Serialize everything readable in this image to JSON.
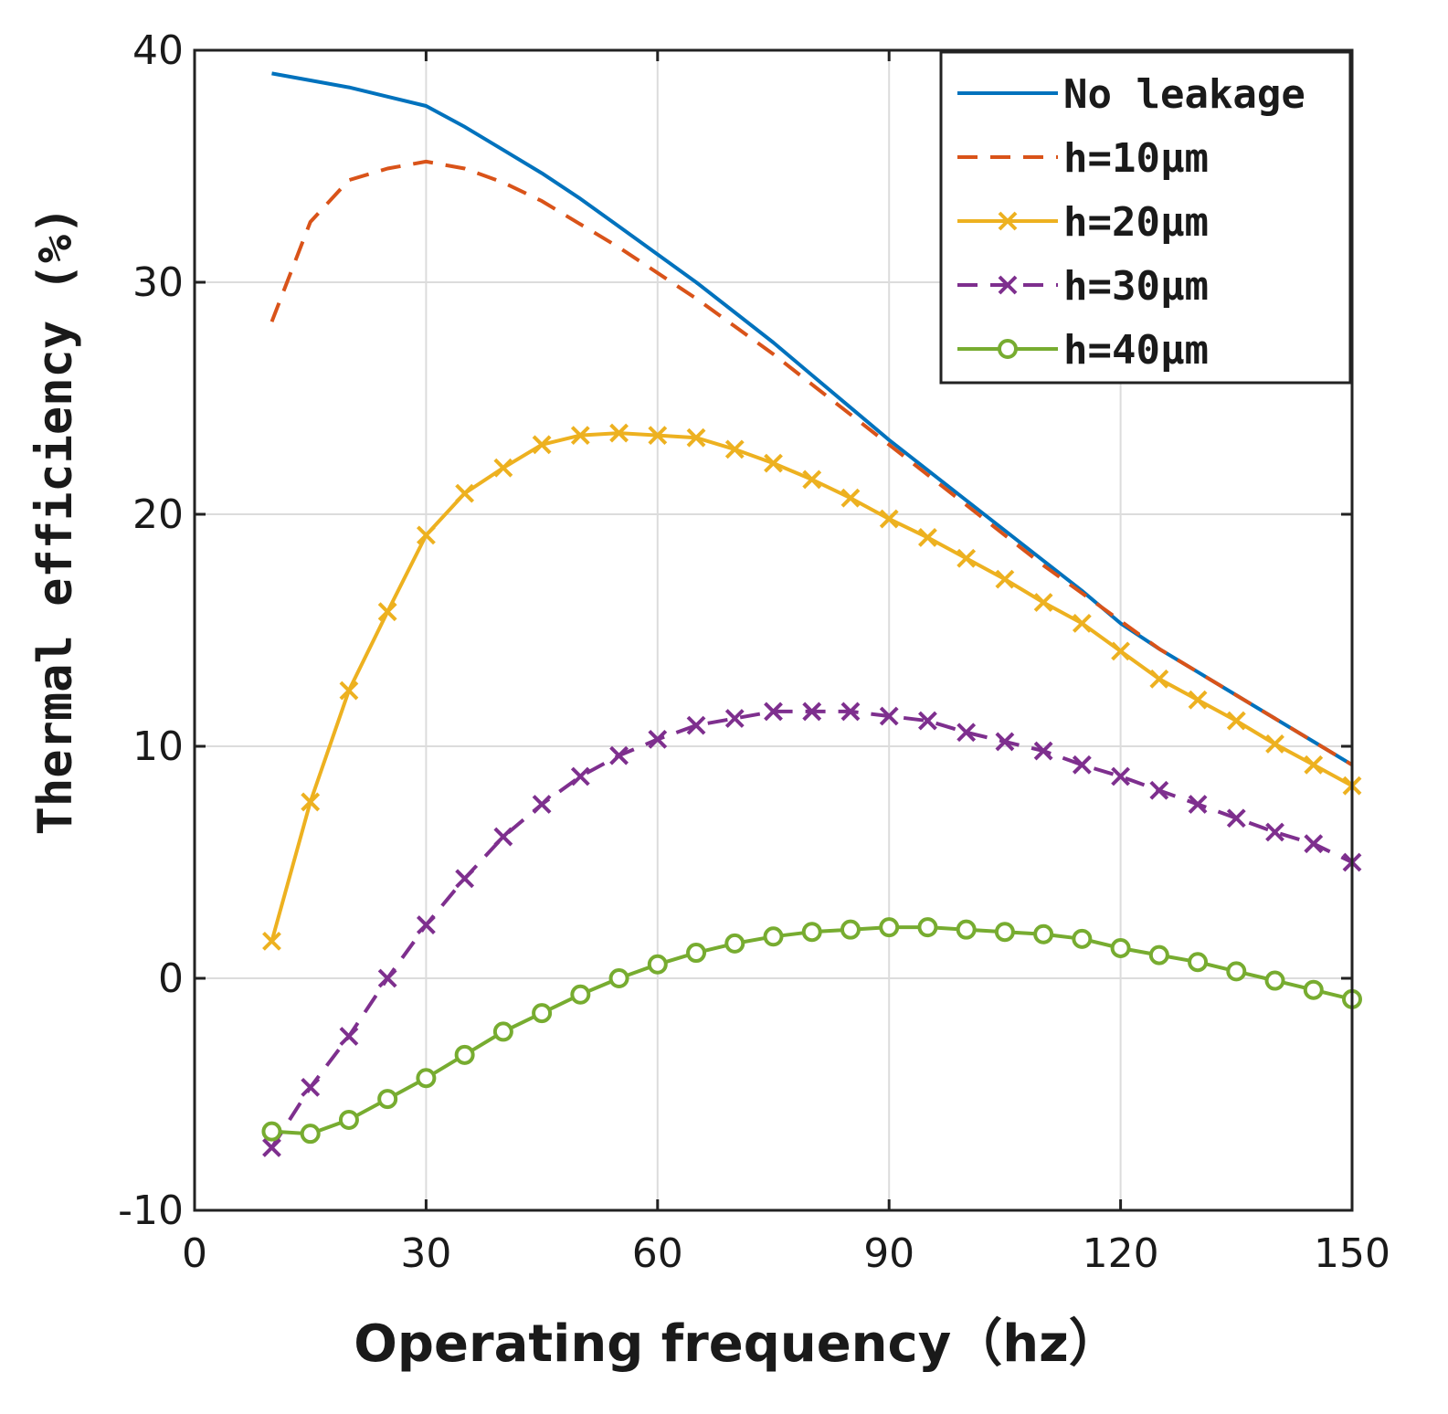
{
  "chart_data": {
    "type": "line",
    "title": "",
    "xlabel": "Operating frequency（hz）",
    "ylabel": "Thermal efficiency  (%)",
    "xlim": [
      0,
      150
    ],
    "ylim": [
      -10,
      40
    ],
    "xticks": [
      0,
      30,
      60,
      90,
      120,
      150
    ],
    "yticks": [
      -10,
      0,
      10,
      20,
      30,
      40
    ],
    "xtick_labels": [
      "0",
      "30",
      "60",
      "90",
      "120",
      "150"
    ],
    "ytick_labels": [
      "-10",
      "0",
      "10",
      "20",
      "30",
      "40"
    ],
    "grid": true,
    "legend_position": "top-right",
    "x": [
      10,
      15,
      20,
      25,
      30,
      35,
      40,
      45,
      50,
      55,
      60,
      65,
      70,
      75,
      80,
      85,
      90,
      95,
      100,
      105,
      110,
      115,
      120,
      125,
      130,
      135,
      140,
      145,
      150
    ],
    "series": [
      {
        "name": "No leakage",
        "color": "#0072bd",
        "style": "solid",
        "marker": "none",
        "values": [
          39.0,
          38.7,
          38.4,
          38.0,
          37.6,
          36.7,
          35.7,
          34.7,
          33.6,
          32.4,
          31.2,
          30.0,
          28.7,
          27.4,
          26.0,
          24.6,
          23.2,
          21.9,
          20.6,
          19.3,
          18.0,
          16.7,
          15.3,
          14.2,
          13.2,
          12.2,
          11.2,
          10.2,
          9.2
        ]
      },
      {
        "name": "h=10μm",
        "color": "#d95319",
        "style": "dashed",
        "marker": "none",
        "values": [
          28.3,
          32.6,
          34.4,
          34.9,
          35.2,
          34.9,
          34.3,
          33.5,
          32.5,
          31.5,
          30.4,
          29.3,
          28.1,
          26.9,
          25.6,
          24.3,
          23.0,
          21.7,
          20.4,
          19.1,
          17.8,
          16.6,
          15.4,
          14.2,
          13.2,
          12.2,
          11.2,
          10.2,
          9.2
        ]
      },
      {
        "name": "h=20μm",
        "color": "#edb120",
        "style": "solid",
        "marker": "x",
        "values": [
          1.6,
          7.6,
          12.4,
          15.8,
          19.1,
          20.9,
          22.0,
          23.0,
          23.4,
          23.5,
          23.4,
          23.3,
          22.8,
          22.2,
          21.5,
          20.7,
          19.8,
          19.0,
          18.1,
          17.2,
          16.2,
          15.3,
          14.1,
          12.9,
          12.0,
          11.1,
          10.1,
          9.2,
          8.3
        ]
      },
      {
        "name": "h=30μm",
        "color": "#7e2f8e",
        "style": "dashed",
        "marker": "x",
        "values": [
          -7.3,
          -4.7,
          -2.5,
          0.0,
          2.3,
          4.3,
          6.1,
          7.5,
          8.7,
          9.6,
          10.3,
          10.9,
          11.2,
          11.5,
          11.5,
          11.5,
          11.3,
          11.1,
          10.6,
          10.2,
          9.8,
          9.2,
          8.7,
          8.1,
          7.5,
          6.9,
          6.3,
          5.8,
          5.0
        ]
      },
      {
        "name": "h=40μm",
        "color": "#77ac30",
        "style": "solid",
        "marker": "o",
        "values": [
          -6.6,
          -6.7,
          -6.1,
          -5.2,
          -4.3,
          -3.3,
          -2.3,
          -1.5,
          -0.7,
          0.0,
          0.6,
          1.1,
          1.5,
          1.8,
          2.0,
          2.1,
          2.2,
          2.2,
          2.1,
          2.0,
          1.9,
          1.7,
          1.3,
          1.0,
          0.7,
          0.3,
          -0.1,
          -0.5,
          -0.9
        ]
      }
    ]
  }
}
